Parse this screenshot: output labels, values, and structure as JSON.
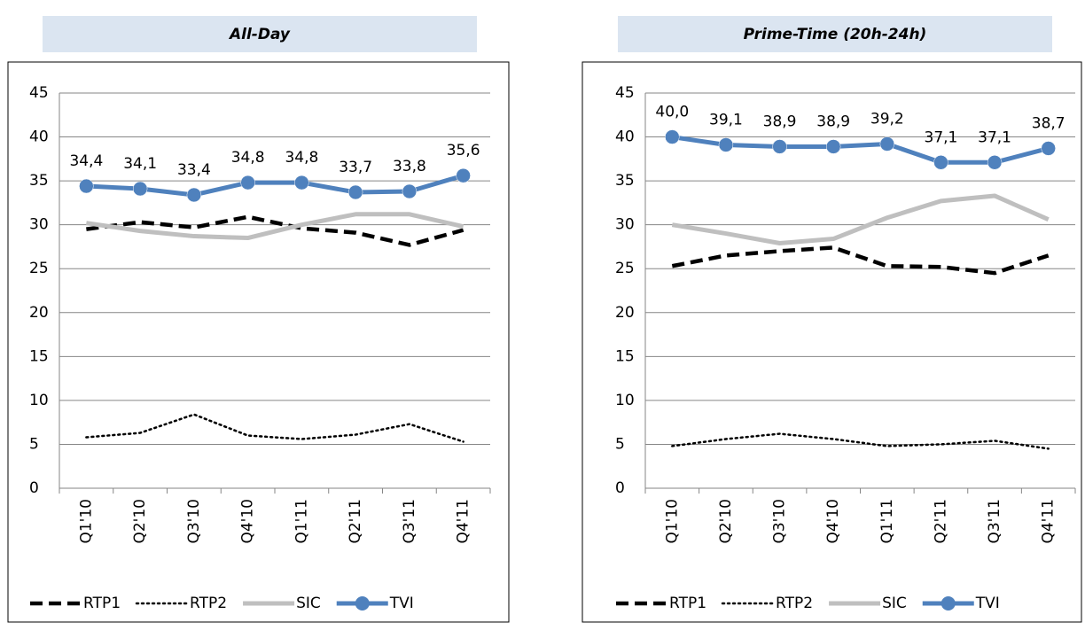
{
  "chart_data": [
    {
      "type": "line",
      "title": "All-Day",
      "categories": [
        "Q1'10",
        "Q2'10",
        "Q3'10",
        "Q4'10",
        "Q1'11",
        "Q2'11",
        "Q3'11",
        "Q4'11"
      ],
      "ylim": [
        0,
        45
      ],
      "yticks": [
        0,
        5,
        10,
        15,
        20,
        25,
        30,
        35,
        40,
        45
      ],
      "grid": true,
      "legend": "bottom",
      "series": [
        {
          "name": "RTP1",
          "color": "#000000",
          "dash": "dashed",
          "values": [
            29.5,
            30.3,
            29.7,
            30.9,
            29.6,
            29.1,
            27.7,
            29.4
          ]
        },
        {
          "name": "RTP2",
          "color": "#000000",
          "dash": "dotted",
          "values": [
            5.8,
            6.3,
            8.4,
            6.0,
            5.6,
            6.1,
            7.3,
            5.3
          ]
        },
        {
          "name": "SIC",
          "color": "#bfbfbf",
          "dash": "solid",
          "values": [
            30.2,
            29.3,
            28.7,
            28.5,
            30.0,
            31.2,
            31.2,
            29.8
          ]
        },
        {
          "name": "TVI",
          "color": "#4f81bd",
          "dash": "solid",
          "marker": "circle",
          "values": [
            34.4,
            34.1,
            33.4,
            34.8,
            34.8,
            33.7,
            33.8,
            35.6
          ],
          "value_labels": [
            "34,4",
            "34,1",
            "33,4",
            "34,8",
            "34,8",
            "33,7",
            "33,8",
            "35,6"
          ]
        }
      ]
    },
    {
      "type": "line",
      "title": "Prime-Time (20h-24h)",
      "categories": [
        "Q1'10",
        "Q2'10",
        "Q3'10",
        "Q4'10",
        "Q1'11",
        "Q2'11",
        "Q3'11",
        "Q4'11"
      ],
      "ylim": [
        0,
        45
      ],
      "yticks": [
        0,
        5,
        10,
        15,
        20,
        25,
        30,
        35,
        40,
        45
      ],
      "grid": true,
      "legend": "bottom",
      "series": [
        {
          "name": "RTP1",
          "color": "#000000",
          "dash": "dashed",
          "values": [
            25.3,
            26.5,
            27.0,
            27.4,
            25.3,
            25.2,
            24.5,
            26.5
          ]
        },
        {
          "name": "RTP2",
          "color": "#000000",
          "dash": "dotted",
          "values": [
            4.8,
            5.6,
            6.2,
            5.6,
            4.8,
            5.0,
            5.4,
            4.5
          ]
        },
        {
          "name": "SIC",
          "color": "#bfbfbf",
          "dash": "solid",
          "values": [
            30.0,
            29.0,
            27.9,
            28.4,
            30.8,
            32.7,
            33.3,
            30.6
          ]
        },
        {
          "name": "TVI",
          "color": "#4f81bd",
          "dash": "solid",
          "marker": "circle",
          "values": [
            40.0,
            39.1,
            38.9,
            38.9,
            39.2,
            37.1,
            37.1,
            38.7
          ],
          "value_labels": [
            "40,0",
            "39,1",
            "38,9",
            "38,9",
            "39,2",
            "37,1",
            "37,1",
            "38,7"
          ]
        }
      ]
    }
  ]
}
